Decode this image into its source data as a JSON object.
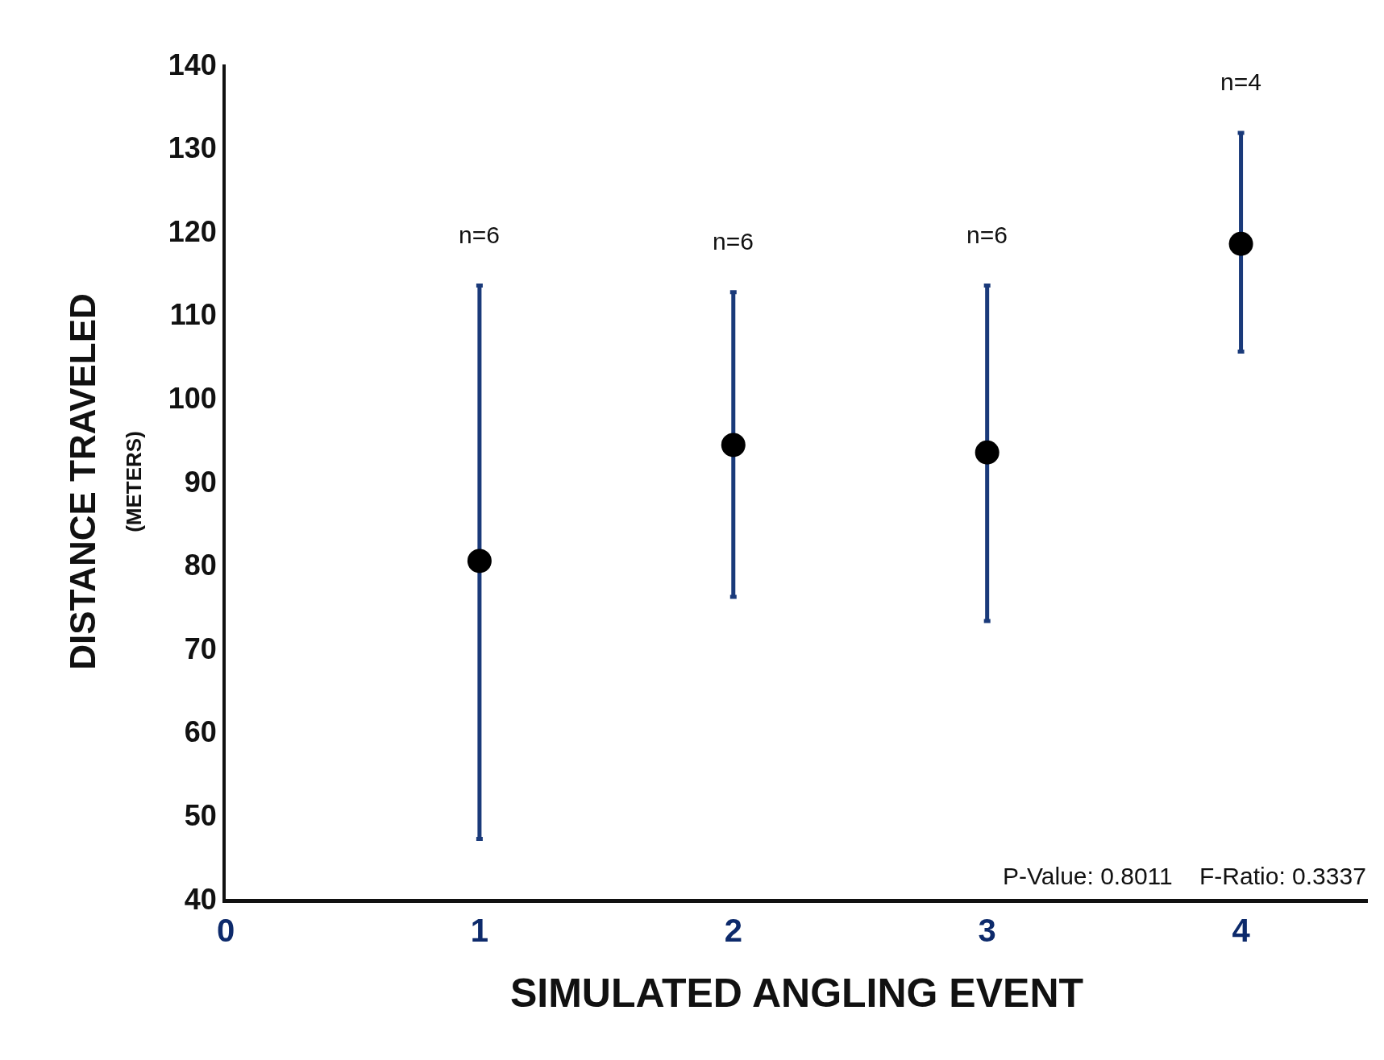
{
  "chart_data": {
    "type": "scatter",
    "xlabel": "SIMULATED ANGLING EVENT",
    "ylabel": "DISTANCE TRAVELED\n(METERS)",
    "x": [
      1,
      2,
      3,
      4
    ],
    "series": [
      {
        "color": "#000000",
        "values": [
          80.5,
          94.4,
          93.5,
          118.5
        ],
        "errors": [
          [
            47.2,
            113.5
          ],
          [
            76.2,
            112.7
          ],
          [
            73.3,
            113.5
          ],
          [
            105.6,
            131.8
          ]
        ]
      }
    ],
    "xlim": [
      0,
      4.5
    ],
    "xticks": [
      0,
      1,
      2,
      3,
      4
    ],
    "ylim": [
      40,
      140
    ],
    "yticks": [
      40,
      50,
      60,
      70,
      80,
      90,
      100,
      110,
      120,
      130,
      140
    ],
    "marker": "circle",
    "grid": false,
    "annotations": [
      "n=6",
      "n=6",
      "n=6",
      "n=4",
      "P-Value: 0.8011    F-Ratio: 0.3337"
    ]
  }
}
